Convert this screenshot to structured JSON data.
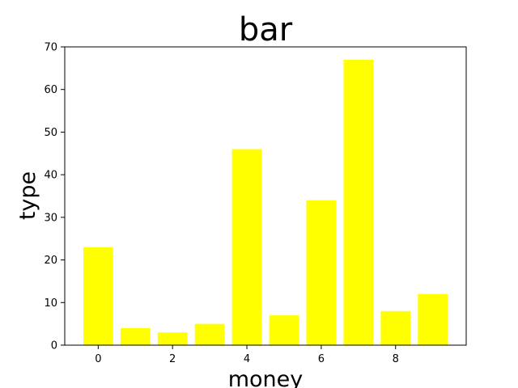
{
  "chart_data": {
    "type": "bar",
    "title": "bar",
    "xlabel": "money",
    "ylabel": "type",
    "x": [
      0,
      1,
      2,
      3,
      4,
      5,
      6,
      7,
      8,
      9
    ],
    "values": [
      23,
      4,
      3,
      5,
      46,
      7,
      34,
      67,
      8,
      12
    ],
    "bar_color": "#ffff00",
    "xlim": [
      -0.9,
      9.9
    ],
    "ylim": [
      0,
      70
    ],
    "xticks": [
      0,
      2,
      4,
      6,
      8
    ],
    "yticks": [
      0,
      10,
      20,
      30,
      40,
      50,
      60,
      70
    ],
    "grid": false,
    "legend": false
  }
}
